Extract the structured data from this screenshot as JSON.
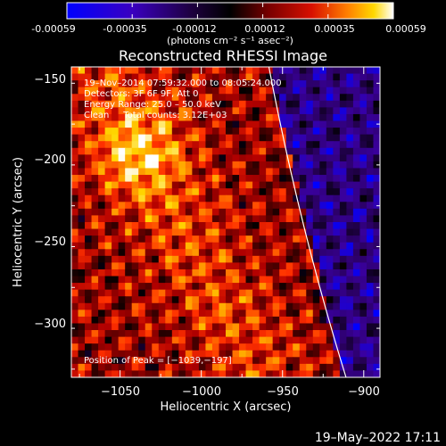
{
  "colorbar": {
    "tick_labels": [
      "-0.00059",
      "-0.00035",
      "-0.00012",
      "0.00012",
      "0.00035",
      "0.00059"
    ],
    "unit_label": "(photons cm⁻² s⁻¹ asec⁻²)",
    "range": [
      -0.00059,
      0.00059
    ]
  },
  "chart_data": {
    "type": "heatmap",
    "title": "Reconstructed RHESSI Image",
    "xlabel": "Heliocentric X (arcsec)",
    "ylabel": "Heliocentric Y (arcsec)",
    "xlim": [
      -1080,
      -890
    ],
    "ylim": [
      -335,
      -145
    ],
    "x_ticks": [
      -1050,
      -1000,
      -950,
      -900
    ],
    "x_tick_labels": [
      "−1050",
      "−1000",
      "−950",
      "−900"
    ],
    "y_ticks": [
      -150,
      -200,
      -250,
      -300
    ],
    "y_tick_labels": [
      "−150",
      "−200",
      "−250",
      "−300"
    ],
    "annotations": [
      "19–Nov–2014 07:59:32.000 to 08:05:24.000",
      "Detectors: 3F 6F 9F, Att 0",
      "Energy Range: 25.0 – 50.0 keV",
      "Clean     Total counts: 3.12E+03"
    ],
    "peak_label": "Position of Peak = [−1039,−197]",
    "limb_color": "#ffffff",
    "colormap": [
      "#0000ff",
      "#3a00a0",
      "#2a0060",
      "#000000",
      "#5a0000",
      "#b20000",
      "#ff3000",
      "#ff9000",
      "#ffd800",
      "#ffffff"
    ]
  },
  "footer": {
    "timestamp": "19–May–2022 17:11"
  }
}
